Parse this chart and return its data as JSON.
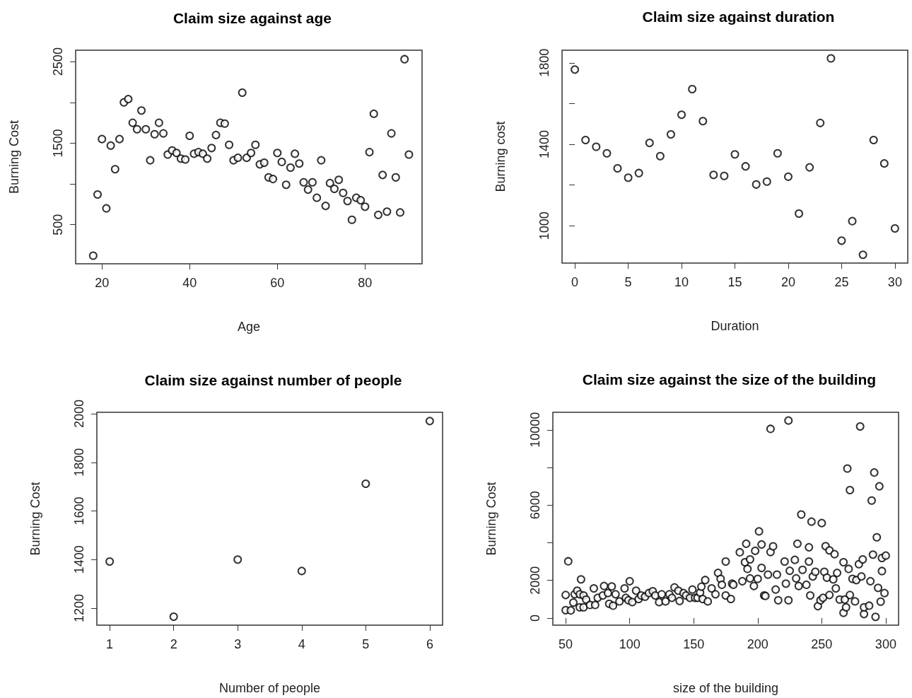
{
  "chart_data": [
    {
      "type": "scatter",
      "title": "Claim size against age",
      "xlabel": "Age",
      "ylabel": "Burning Cost",
      "marker": "circle",
      "color": "#000000",
      "x": [
        18,
        19,
        20,
        21,
        22,
        23,
        24,
        25,
        26,
        27,
        28,
        29,
        30,
        31,
        32,
        33,
        34,
        35,
        36,
        37,
        38,
        39,
        40,
        41,
        42,
        43,
        44,
        45,
        46,
        47,
        48,
        49,
        50,
        51,
        52,
        53,
        54,
        55,
        56,
        57,
        58,
        59,
        60,
        61,
        62,
        63,
        64,
        65,
        66,
        67,
        68,
        69,
        70,
        71,
        72,
        73,
        74,
        75,
        76,
        77,
        78,
        79,
        80,
        81,
        82,
        83,
        84,
        85,
        86,
        87,
        88,
        89,
        90
      ],
      "values": [
        120,
        870,
        1550,
        700,
        1470,
        1180,
        1550,
        2000,
        2040,
        1750,
        1670,
        1900,
        1670,
        1290,
        1610,
        1750,
        1620,
        1360,
        1410,
        1380,
        1310,
        1300,
        1590,
        1370,
        1390,
        1370,
        1310,
        1440,
        1600,
        1750,
        1740,
        1480,
        1290,
        1320,
        2120,
        1320,
        1380,
        1480,
        1240,
        1260,
        1080,
        1060,
        1380,
        1270,
        990,
        1200,
        1370,
        1250,
        1020,
        930,
        1020,
        830,
        1290,
        730,
        1010,
        940,
        1050,
        890,
        790,
        560,
        830,
        800,
        720,
        1390,
        1860,
        620,
        1110,
        660,
        1620,
        1080,
        650,
        2530,
        1360
      ],
      "xlim": [
        14,
        93
      ],
      "ylim": [
        20,
        2640
      ],
      "xticks": [
        20,
        40,
        60,
        80
      ],
      "yticks": [
        500,
        {
          "value": 1000,
          "label": null
        },
        1500,
        {
          "value": 2000,
          "label": null
        },
        2500
      ]
    },
    {
      "type": "scatter",
      "title": "Claim size against duration",
      "xlabel": "Duration",
      "ylabel": "Burning cost",
      "marker": "circle",
      "color": "#000000",
      "x": [
        0,
        1,
        2,
        3,
        4,
        5,
        6,
        7,
        8,
        9,
        10,
        11,
        12,
        13,
        14,
        15,
        16,
        17,
        18,
        19,
        20,
        21,
        22,
        23,
        24,
        25,
        26,
        27,
        28,
        29,
        30
      ],
      "values": [
        1767,
        1421,
        1388,
        1356,
        1282,
        1236,
        1259,
        1407,
        1342,
        1449,
        1545,
        1671,
        1514,
        1250,
        1245,
        1351,
        1292,
        1203,
        1217,
        1356,
        1241,
        1060,
        1287,
        1505,
        1822,
        927,
        1023,
        858,
        1421,
        1306,
        987
      ],
      "xlim": [
        -1.2,
        31.2
      ],
      "ylim": [
        817,
        1862
      ],
      "xticks": [
        0,
        5,
        10,
        15,
        20,
        25,
        30
      ],
      "yticks": [
        1000,
        {
          "value": 1200,
          "label": null
        },
        1400,
        {
          "value": 1600,
          "label": null
        },
        1800
      ]
    },
    {
      "type": "scatter",
      "title": "Claim size against number of people",
      "xlabel": "Number of people",
      "ylabel": "Burning Cost",
      "marker": "circle",
      "color": "#000000",
      "x": [
        1,
        2,
        3,
        4,
        5,
        6
      ],
      "values": [
        1392,
        1165,
        1400,
        1353,
        1712,
        1970
      ],
      "xlim": [
        0.8,
        6.2
      ],
      "ylim": [
        1130,
        2006
      ],
      "xticks": [
        1,
        2,
        3,
        4,
        5,
        6
      ],
      "yticks": [
        1200,
        1400,
        1600,
        1800,
        2000
      ]
    },
    {
      "type": "scatter",
      "title": "Claim size against the size of the building",
      "xlabel": "size of the building",
      "ylabel": "Burning Cost",
      "marker": "circle",
      "color": "#000000",
      "x": [
        50,
        52,
        50,
        54,
        56,
        57,
        59,
        61,
        62,
        61,
        64,
        64,
        66,
        69,
        72,
        73,
        75,
        79,
        80,
        83,
        84,
        86,
        87,
        89,
        92,
        96,
        97,
        100,
        99,
        102,
        105,
        107,
        109,
        112,
        115,
        118,
        120,
        123,
        125,
        128,
        131,
        133,
        135,
        138,
        139,
        142,
        144,
        147,
        149,
        151,
        153,
        155,
        156,
        157,
        159,
        161,
        164,
        167,
        169,
        171,
        172,
        175,
        175,
        179,
        180,
        181,
        186,
        188,
        190,
        191,
        192,
        194,
        194,
        197,
        198,
        200,
        201,
        203,
        203,
        205,
        206,
        208,
        210,
        210,
        212,
        214,
        215,
        216,
        221,
        222,
        224,
        224,
        225,
        229,
        230,
        231,
        232,
        234,
        235,
        238,
        240,
        240,
        241,
        242,
        243,
        245,
        247,
        249,
        250,
        251,
        252,
        253,
        254,
        256,
        256,
        259,
        260,
        261,
        262,
        264,
        267,
        267,
        268,
        269,
        270,
        271,
        272,
        272,
        274,
        276,
        277,
        279,
        280,
        281,
        282,
        283,
        283,
        287,
        288,
        289,
        290,
        291,
        292,
        293,
        294,
        295,
        296,
        297,
        297,
        299,
        300
      ],
      "values": [
        1223,
        3014,
        416,
        403,
        820,
        1261,
        1450,
        1261,
        2055,
        567,
        567,
        1198,
        984,
        694,
        1576,
        694,
        1072,
        1198,
        1702,
        1324,
        757,
        1677,
        656,
        1261,
        883,
        1576,
        1072,
        1955,
        946,
        845,
        1450,
        1009,
        1198,
        1135,
        1324,
        1425,
        1198,
        845,
        1261,
        883,
        1261,
        1072,
        1627,
        1450,
        908,
        1324,
        1198,
        1072,
        1513,
        1072,
        1072,
        1349,
        1665,
        1009,
        2018,
        883,
        1576,
        1261,
        2396,
        2081,
        1765,
        3001,
        1198,
        1009,
        1828,
        1765,
        3493,
        1955,
        2963,
        3947,
        2610,
        3115,
        2106,
        1702,
        3569,
        2081,
        4603,
        2661,
        3909,
        1198,
        1173,
        2308,
        3506,
        10050,
        3808,
        1513,
        2308,
        946,
        3001,
        1828,
        10492,
        946,
        2509,
        3090,
        2106,
        3947,
        1702,
        5498,
        2560,
        1765,
        3001,
        3758,
        1198,
        5120,
        2207,
        2459,
        630,
        946,
        5044,
        1072,
        2459,
        3821,
        2144,
        1223,
        3594,
        2055,
        3392,
        1576,
        2396,
        984,
        277,
        2963,
        984,
        567,
        7944,
        2610,
        1223,
        6797,
        2081,
        883,
        2018,
        2862,
        10176,
        2207,
        3115,
        214,
        567,
        656,
        1955,
        6242,
        3367,
        7730,
        63,
        4287,
        1601,
        6999,
        870,
        2497,
        3191,
        1324,
        3316
      ],
      "xlim": [
        40,
        310
      ],
      "ylim": [
        -380,
        10930
      ],
      "xticks": [
        50,
        100,
        150,
        200,
        250,
        300
      ],
      "yticks": [
        0,
        2000,
        {
          "value": 4000,
          "label": null
        },
        6000,
        {
          "value": 8000,
          "label": null
        },
        10000
      ]
    }
  ]
}
